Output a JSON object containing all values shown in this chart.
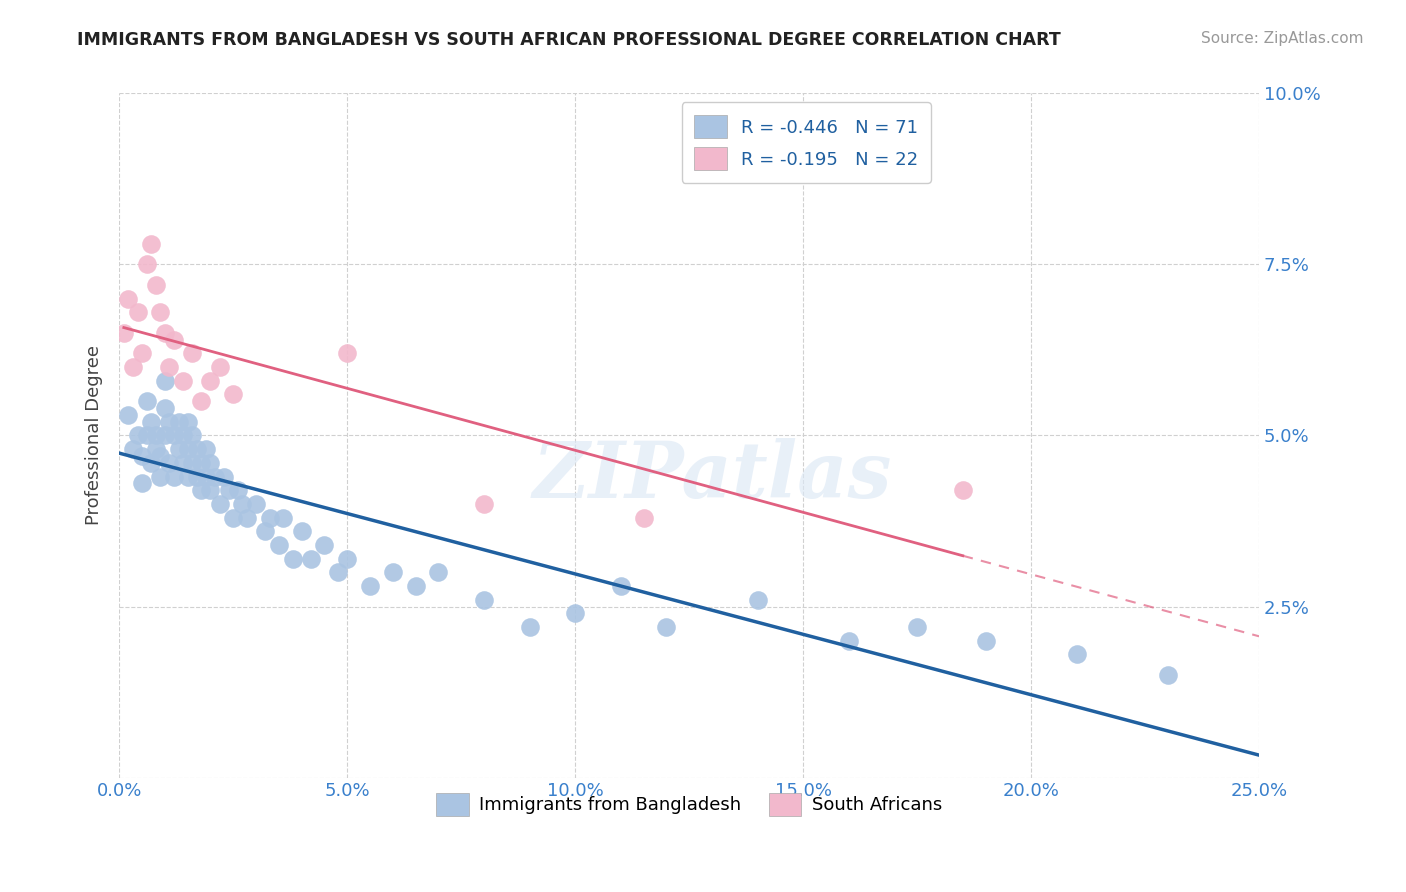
{
  "title": "IMMIGRANTS FROM BANGLADESH VS SOUTH AFRICAN PROFESSIONAL DEGREE CORRELATION CHART",
  "source": "Source: ZipAtlas.com",
  "ylabel": "Professional Degree",
  "xlim": [
    0.0,
    0.25
  ],
  "ylim": [
    0.0,
    0.1
  ],
  "xticks": [
    0.0,
    0.05,
    0.1,
    0.15,
    0.2,
    0.25
  ],
  "xticklabels": [
    "0.0%",
    "5.0%",
    "10.0%",
    "15.0%",
    "20.0%",
    "25.0%"
  ],
  "yticks": [
    0.0,
    0.025,
    0.05,
    0.075,
    0.1
  ],
  "yticklabels": [
    "",
    "2.5%",
    "5.0%",
    "7.5%",
    "10.0%"
  ],
  "r_blue": -0.446,
  "n_blue": 71,
  "r_pink": -0.195,
  "n_pink": 22,
  "blue_color": "#aac4e2",
  "pink_color": "#f2b8cc",
  "blue_line_color": "#2060a0",
  "pink_line_color": "#e06080",
  "watermark": "ZIPatlas",
  "legend_label_blue": "Immigrants from Bangladesh",
  "legend_label_pink": "South Africans",
  "blue_scatter_x": [
    0.002,
    0.003,
    0.004,
    0.005,
    0.005,
    0.006,
    0.006,
    0.007,
    0.007,
    0.008,
    0.008,
    0.009,
    0.009,
    0.01,
    0.01,
    0.01,
    0.011,
    0.011,
    0.012,
    0.012,
    0.013,
    0.013,
    0.014,
    0.014,
    0.015,
    0.015,
    0.015,
    0.016,
    0.016,
    0.017,
    0.017,
    0.018,
    0.018,
    0.019,
    0.019,
    0.02,
    0.02,
    0.021,
    0.022,
    0.023,
    0.024,
    0.025,
    0.026,
    0.027,
    0.028,
    0.03,
    0.032,
    0.033,
    0.035,
    0.036,
    0.038,
    0.04,
    0.042,
    0.045,
    0.048,
    0.05,
    0.055,
    0.06,
    0.065,
    0.07,
    0.08,
    0.09,
    0.1,
    0.11,
    0.12,
    0.14,
    0.16,
    0.175,
    0.19,
    0.21,
    0.23
  ],
  "blue_scatter_y": [
    0.053,
    0.048,
    0.05,
    0.047,
    0.043,
    0.05,
    0.055,
    0.046,
    0.052,
    0.05,
    0.048,
    0.044,
    0.047,
    0.05,
    0.054,
    0.058,
    0.046,
    0.052,
    0.044,
    0.05,
    0.048,
    0.052,
    0.046,
    0.05,
    0.044,
    0.048,
    0.052,
    0.046,
    0.05,
    0.044,
    0.048,
    0.042,
    0.046,
    0.044,
    0.048,
    0.042,
    0.046,
    0.044,
    0.04,
    0.044,
    0.042,
    0.038,
    0.042,
    0.04,
    0.038,
    0.04,
    0.036,
    0.038,
    0.034,
    0.038,
    0.032,
    0.036,
    0.032,
    0.034,
    0.03,
    0.032,
    0.028,
    0.03,
    0.028,
    0.03,
    0.026,
    0.022,
    0.024,
    0.028,
    0.022,
    0.026,
    0.02,
    0.022,
    0.02,
    0.018,
    0.015
  ],
  "pink_scatter_x": [
    0.001,
    0.002,
    0.003,
    0.004,
    0.005,
    0.006,
    0.007,
    0.008,
    0.009,
    0.01,
    0.011,
    0.012,
    0.014,
    0.016,
    0.018,
    0.02,
    0.022,
    0.025,
    0.05,
    0.08,
    0.115,
    0.185
  ],
  "pink_scatter_y": [
    0.065,
    0.07,
    0.06,
    0.068,
    0.062,
    0.075,
    0.078,
    0.072,
    0.068,
    0.065,
    0.06,
    0.064,
    0.058,
    0.062,
    0.055,
    0.058,
    0.06,
    0.056,
    0.062,
    0.04,
    0.038,
    0.042
  ]
}
